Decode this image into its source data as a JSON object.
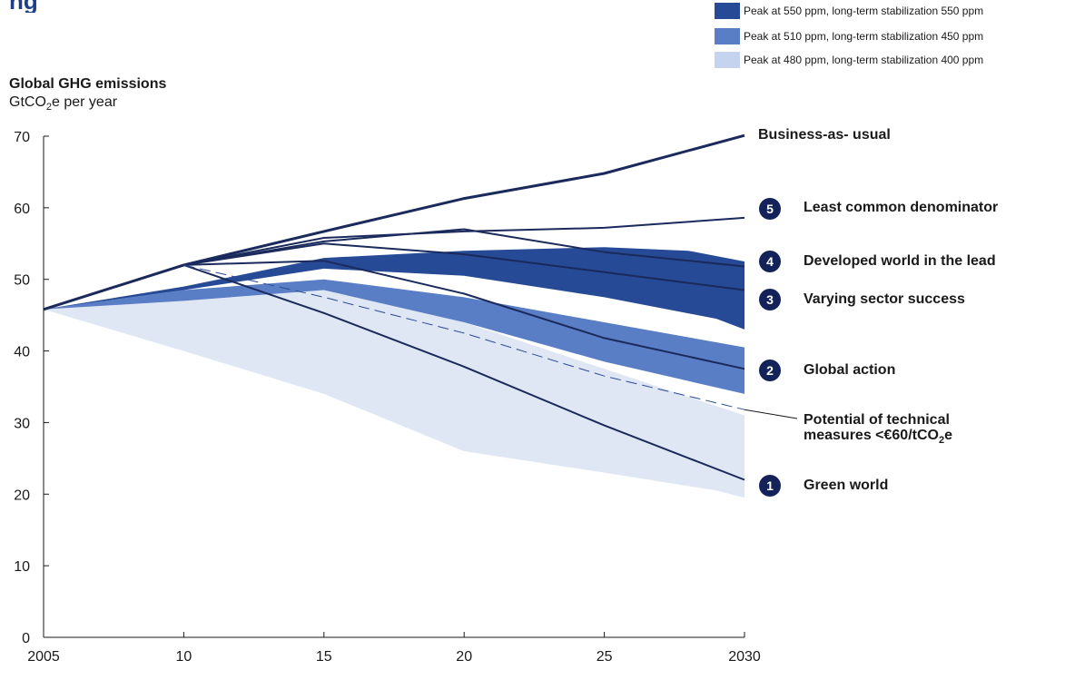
{
  "title": "ng",
  "legend": [
    {
      "label": "Peak at 550 ppm, long-term stabilization 550 ppm",
      "color": "#264a95"
    },
    {
      "label": "Peak at 510 ppm, long-term stabilization 450 ppm",
      "color": "#5a7ec6"
    },
    {
      "label": "Peak at 480 ppm, long-term stabilization 400 ppm",
      "color": "#c5d3ee"
    }
  ],
  "y_axis": {
    "title": "Global GHG emissions",
    "unit_prefix": "GtCO",
    "unit_sub": "2",
    "unit_suffix": "e per year"
  },
  "scenario_labels": {
    "bau": "Business-as- usual",
    "s5": {
      "number": "5",
      "label": "Least common denominator"
    },
    "s4": {
      "number": "4",
      "label": "Developed world in the lead"
    },
    "s3": {
      "number": "3",
      "label": "Varying sector success"
    },
    "s2": {
      "number": "2",
      "label": "Global action"
    },
    "s1": {
      "number": "1",
      "label": "Green world"
    },
    "potential": {
      "line1": "Potential of technical",
      "line2_prefix": "measures <€60/tCO",
      "line2_sub": "2",
      "line2_suffix": "e"
    }
  },
  "chart_data": {
    "type": "line",
    "x_tick_labels": [
      "2005",
      "10",
      "15",
      "20",
      "25",
      "2030"
    ],
    "y_ticks": [
      0,
      10,
      20,
      30,
      40,
      50,
      60,
      70
    ],
    "xlim": [
      2005,
      2030
    ],
    "ylim": [
      0,
      70
    ],
    "bands": [
      {
        "name": "Peak at 480 ppm, long-term stabilization 400 ppm",
        "color": "#dfe6f4",
        "upper": [
          [
            2005,
            45.8
          ],
          [
            2010,
            47.0
          ],
          [
            2015,
            48.5
          ],
          [
            2020,
            44.0
          ],
          [
            2025,
            37.5
          ],
          [
            2030,
            31.0
          ]
        ],
        "lower": [
          [
            2005,
            45.8
          ],
          [
            2010,
            40.0
          ],
          [
            2015,
            34.0
          ],
          [
            2020,
            26.0
          ],
          [
            2025,
            23.0
          ],
          [
            2029,
            20.5
          ],
          [
            2030,
            19.5
          ]
        ]
      },
      {
        "name": "Peak at 510 ppm, long-term stabilization 450 ppm",
        "color": "#5a7ec6",
        "upper": [
          [
            2005,
            45.8
          ],
          [
            2010,
            48.5
          ],
          [
            2015,
            50.0
          ],
          [
            2020,
            47.5
          ],
          [
            2025,
            44.0
          ],
          [
            2030,
            40.5
          ]
        ],
        "lower": [
          [
            2005,
            45.8
          ],
          [
            2010,
            47.0
          ],
          [
            2015,
            48.5
          ],
          [
            2020,
            44.0
          ],
          [
            2025,
            38.5
          ],
          [
            2030,
            34.0
          ]
        ]
      },
      {
        "name": "Peak at 550 ppm, long-term stabilization 550 ppm",
        "color": "#264a95",
        "upper": [
          [
            2005,
            45.8
          ],
          [
            2010,
            49.0
          ],
          [
            2015,
            53.0
          ],
          [
            2020,
            54.0
          ],
          [
            2025,
            54.5
          ],
          [
            2028,
            54.0
          ],
          [
            2030,
            52.5
          ]
        ],
        "lower": [
          [
            2005,
            45.8
          ],
          [
            2010,
            48.5
          ],
          [
            2015,
            51.5
          ],
          [
            2020,
            50.5
          ],
          [
            2025,
            47.5
          ],
          [
            2029,
            44.5
          ],
          [
            2030,
            43.0
          ]
        ]
      }
    ],
    "series": [
      {
        "name": "Business-as- usual",
        "width": 3,
        "values": [
          [
            2005,
            45.8
          ],
          [
            2010,
            52.0
          ],
          [
            2015,
            56.7
          ],
          [
            2020,
            61.3
          ],
          [
            2025,
            64.8
          ],
          [
            2030,
            70.1
          ]
        ]
      },
      {
        "name": "Least common denominator",
        "width": 2,
        "values": [
          [
            2005,
            45.8
          ],
          [
            2010,
            52.0
          ],
          [
            2015,
            55.8
          ],
          [
            2020,
            56.7
          ],
          [
            2025,
            57.2
          ],
          [
            2030,
            58.6
          ]
        ]
      },
      {
        "name": "Developed world in the lead",
        "width": 2,
        "values": [
          [
            2005,
            45.8
          ],
          [
            2010,
            52.0
          ],
          [
            2015,
            55.3
          ],
          [
            2020,
            57.0
          ],
          [
            2025,
            53.8
          ],
          [
            2030,
            51.8
          ]
        ]
      },
      {
        "name": "Varying sector success",
        "width": 2,
        "values": [
          [
            2005,
            45.8
          ],
          [
            2010,
            52.0
          ],
          [
            2015,
            55.0
          ],
          [
            2020,
            53.5
          ],
          [
            2025,
            51.0
          ],
          [
            2030,
            48.5
          ]
        ]
      },
      {
        "name": "Global action",
        "width": 2,
        "values": [
          [
            2005,
            45.8
          ],
          [
            2010,
            52.0
          ],
          [
            2015,
            52.6
          ],
          [
            2020,
            48.0
          ],
          [
            2025,
            41.8
          ],
          [
            2030,
            37.5
          ]
        ]
      },
      {
        "name": "Green world",
        "width": 2,
        "values": [
          [
            2005,
            45.8
          ],
          [
            2010,
            52.0
          ],
          [
            2015,
            45.3
          ],
          [
            2020,
            37.8
          ],
          [
            2025,
            29.6
          ],
          [
            2030,
            22.0
          ]
        ]
      },
      {
        "name": "Potential of technical measures <€60/tCO2e",
        "width": 1,
        "dashed": true,
        "values": [
          [
            2010,
            52.0
          ],
          [
            2015,
            47.5
          ],
          [
            2020,
            42.5
          ],
          [
            2025,
            36.5
          ],
          [
            2030,
            31.8
          ]
        ]
      }
    ]
  }
}
